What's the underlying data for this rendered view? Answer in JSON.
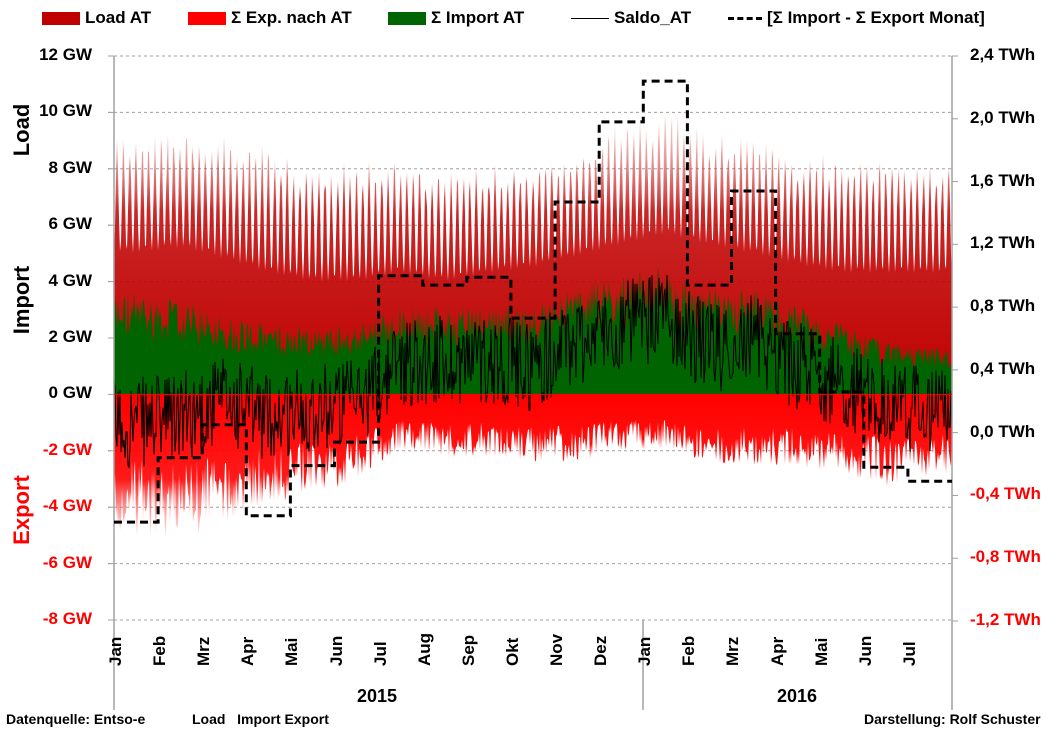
{
  "chart_data": {
    "type": "area",
    "title": "",
    "legend": [
      {
        "label": "Load AT",
        "color": "#c00000",
        "kind": "area"
      },
      {
        "label": "Σ Exp. nach AT",
        "color": "#ff0000",
        "kind": "area"
      },
      {
        "label": "Σ Import AT",
        "color": "#006400",
        "kind": "area"
      },
      {
        "label": "Saldo_AT",
        "color": "#000000",
        "kind": "line"
      },
      {
        "label": "[Σ Import - Σ Export Monat]",
        "color": "#000000",
        "kind": "dashed"
      }
    ],
    "legend_position": "top",
    "y_left": {
      "ticks": [
        {
          "value": 12,
          "label": "12 GW"
        },
        {
          "value": 10,
          "label": "10 GW"
        },
        {
          "value": 8,
          "label": "8 GW"
        },
        {
          "value": 6,
          "label": "6 GW"
        },
        {
          "value": 4,
          "label": "4 GW"
        },
        {
          "value": 2,
          "label": "2 GW"
        },
        {
          "value": 0,
          "label": "0 GW"
        },
        {
          "value": -2,
          "label": "-2 GW"
        },
        {
          "value": -4,
          "label": "-4 GW"
        },
        {
          "value": -6,
          "label": "-6 GW"
        },
        {
          "value": -8,
          "label": "-8 GW"
        }
      ],
      "range": [
        -8,
        12
      ],
      "unit": "GW",
      "titles": {
        "load": "Load",
        "import": "Import",
        "export": "Export"
      }
    },
    "y_right": {
      "ticks": [
        {
          "value": 2.4,
          "label": "2,4 TWh"
        },
        {
          "value": 2.0,
          "label": "2,0 TWh"
        },
        {
          "value": 1.6,
          "label": "1,6 TWh"
        },
        {
          "value": 1.2,
          "label": "1,2 TWh"
        },
        {
          "value": 0.8,
          "label": "0,8 TWh"
        },
        {
          "value": 0.4,
          "label": "0,4 TWh"
        },
        {
          "value": 0.0,
          "label": "0,0 TWh"
        },
        {
          "value": -0.4,
          "label": "-0,4 TWh"
        },
        {
          "value": -0.8,
          "label": "-0,8 TWh"
        },
        {
          "value": -1.2,
          "label": "-1,2 TWh"
        }
      ],
      "range": [
        -1.2,
        2.4
      ],
      "unit": "TWh"
    },
    "x": {
      "months": [
        "Jan",
        "Feb",
        "Mrz",
        "Apr",
        "Mai",
        "Jun",
        "Jul",
        "Aug",
        "Sep",
        "Okt",
        "Nov",
        "Dez",
        "Jan",
        "Feb",
        "Mrz",
        "Apr",
        "Mai",
        "Jun",
        "Jul"
      ],
      "years": [
        {
          "label": "2015",
          "months": 12
        },
        {
          "label": "2016",
          "months": 7
        }
      ]
    },
    "grid": true,
    "series": [
      {
        "name": "[Σ Import - Σ Export Monat]",
        "unit": "TWh",
        "values": [
          -0.57,
          -0.16,
          0.05,
          -0.53,
          -0.21,
          -0.06,
          1.0,
          0.94,
          0.99,
          0.73,
          1.47,
          1.98,
          2.24,
          0.94,
          1.54,
          0.63,
          0.26,
          -0.22,
          -0.31
        ]
      },
      {
        "name": "Load AT",
        "unit": "GW",
        "monthly_peak": [
          9.3,
          9.6,
          9.3,
          8.8,
          8.3,
          8.3,
          8.4,
          7.9,
          8.2,
          8.4,
          8.9,
          9.8,
          10.3,
          9.4,
          9.2,
          8.7,
          8.6,
          8.6,
          8.4
        ],
        "monthly_min": [
          5.0,
          5.2,
          4.8,
          4.3,
          4.0,
          4.0,
          4.3,
          4.0,
          4.3,
          4.5,
          4.9,
          5.3,
          5.7,
          5.3,
          5.0,
          4.6,
          4.3,
          4.3,
          4.3
        ]
      },
      {
        "name": "Σ Import AT",
        "unit": "GW",
        "monthly_typical": [
          3.5,
          3.2,
          2.8,
          2.4,
          2.3,
          2.4,
          3.1,
          3.0,
          3.2,
          3.0,
          3.8,
          4.2,
          4.3,
          3.6,
          3.7,
          3.0,
          2.4,
          1.8,
          1.6
        ]
      },
      {
        "name": "Σ Exp. nach AT",
        "unit": "GW",
        "monthly_typical": [
          -4.6,
          -4.8,
          -4.2,
          -3.6,
          -3.3,
          -2.8,
          -1.8,
          -2.0,
          -2.0,
          -2.2,
          -2.2,
          -1.8,
          -1.8,
          -2.2,
          -2.3,
          -2.3,
          -2.6,
          -3.0,
          -2.6
        ]
      },
      {
        "name": "Saldo_AT",
        "unit": "GW",
        "monthly_mean": [
          -1.0,
          -0.8,
          -0.2,
          -0.8,
          -0.4,
          -0.3,
          1.2,
          1.2,
          1.3,
          1.0,
          1.9,
          2.4,
          2.8,
          1.6,
          2.0,
          1.0,
          0.4,
          -0.4,
          -0.5
        ]
      }
    ]
  },
  "footer": {
    "source": "Datenquelle: Entso-e",
    "keywords": "Load   Import Export",
    "author": "Darstellung: Rolf Schuster"
  }
}
